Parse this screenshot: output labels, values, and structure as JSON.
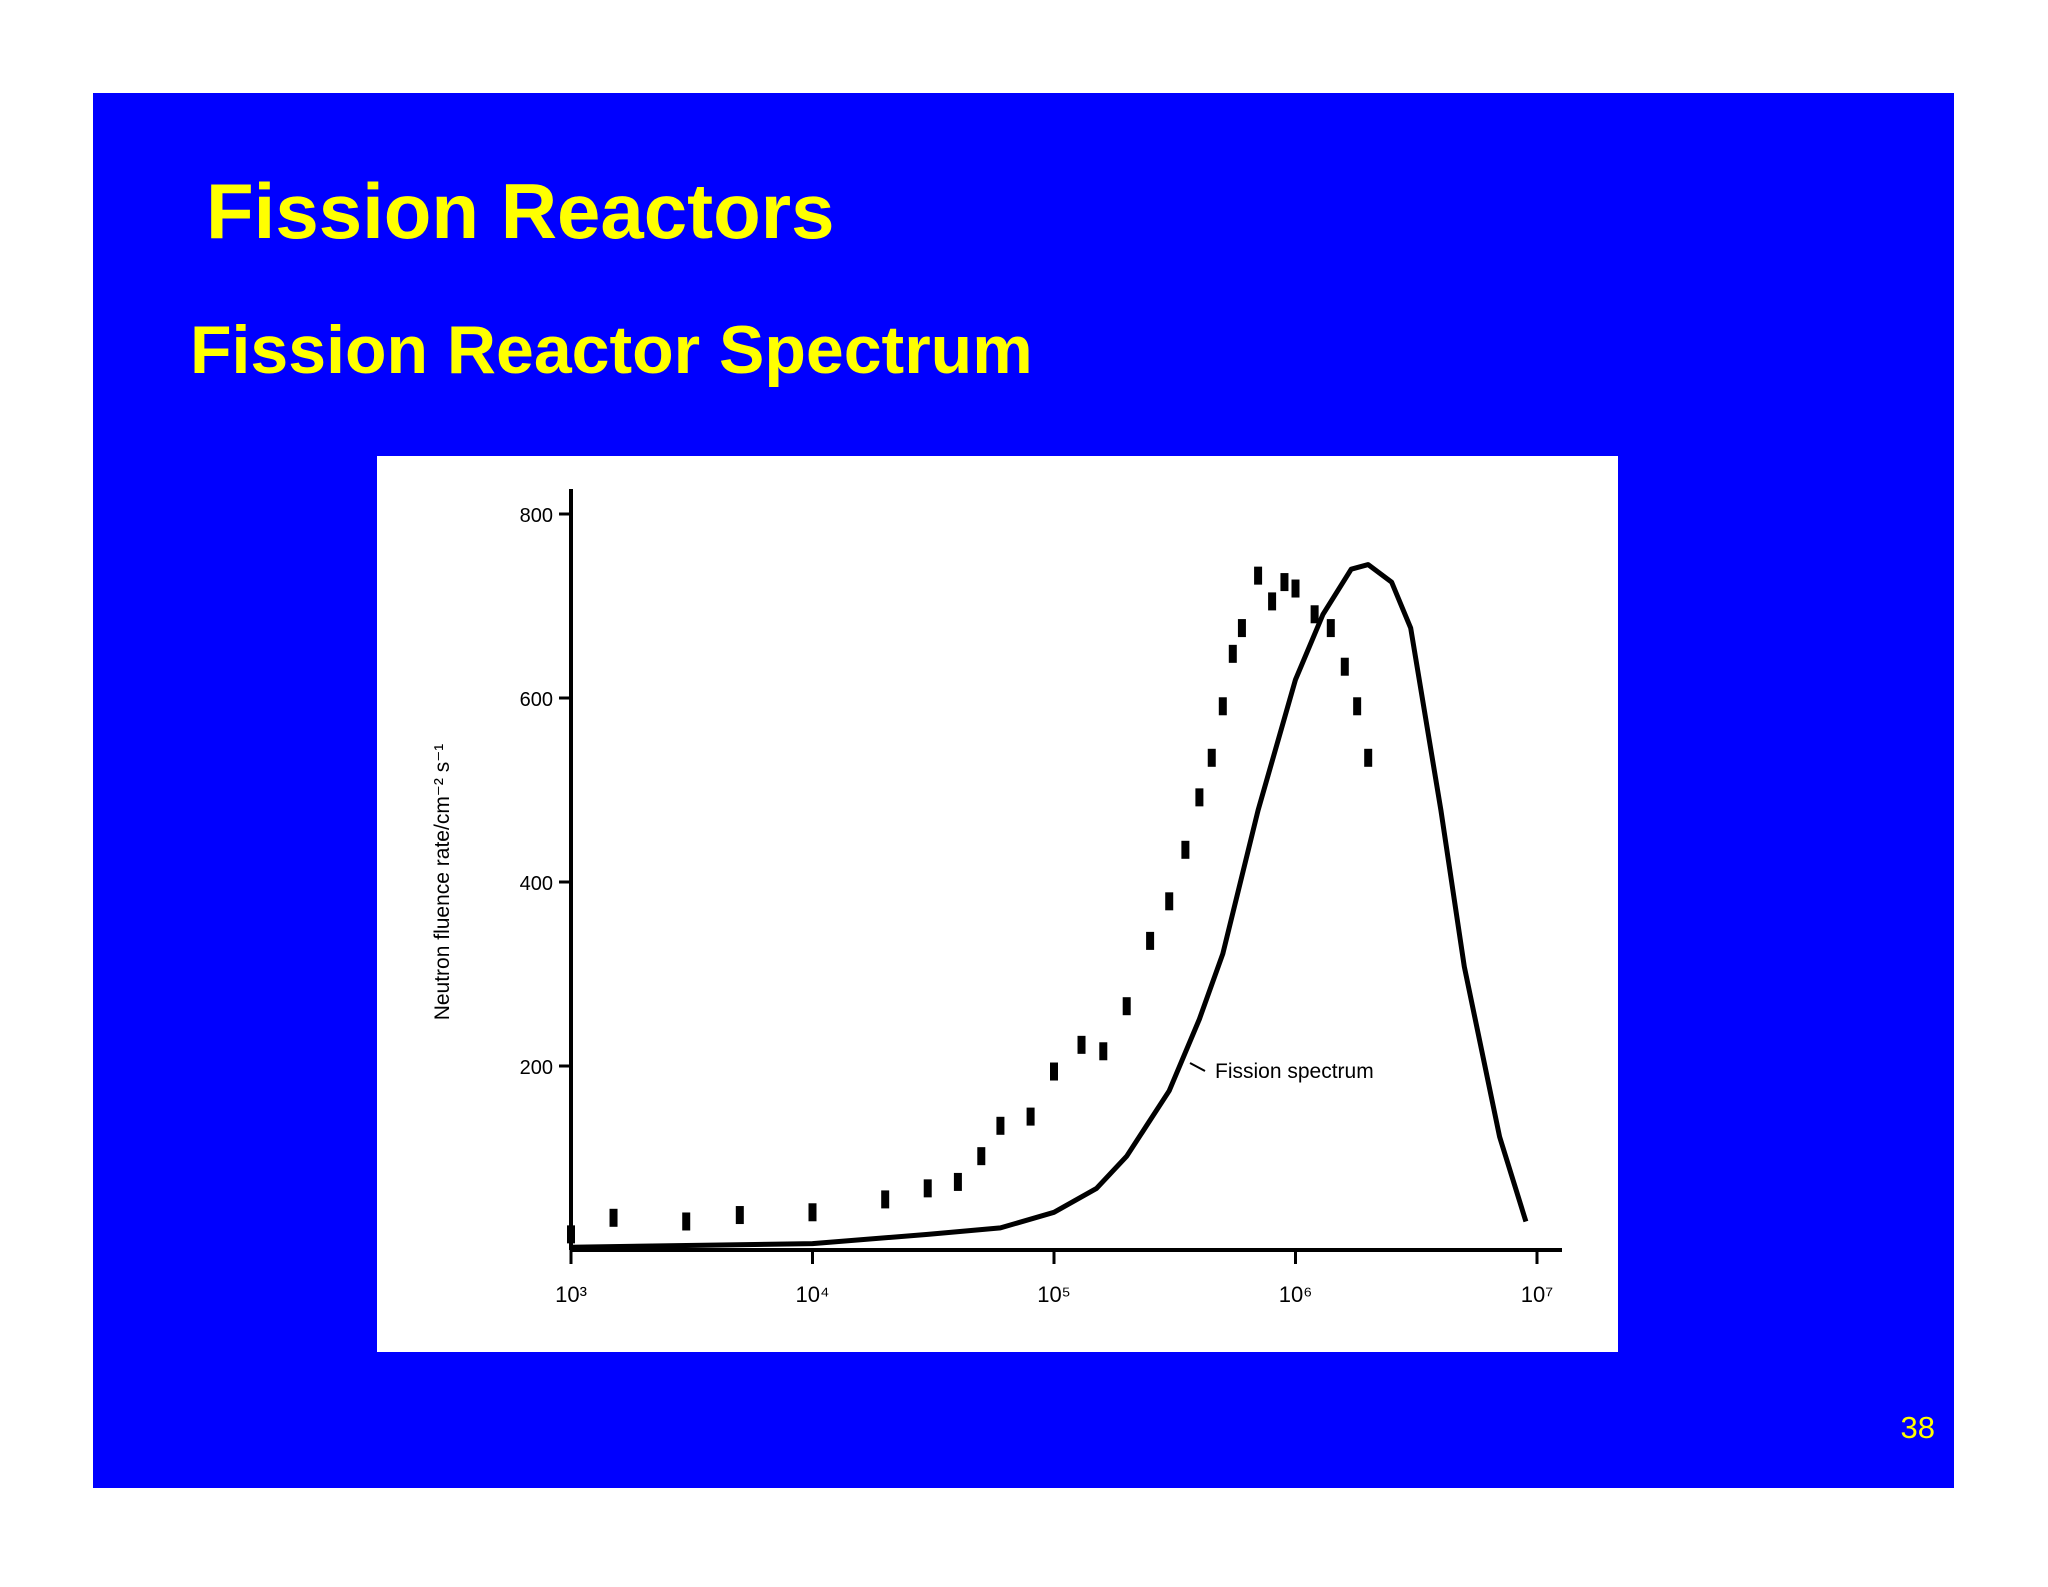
{
  "slide": {
    "title": "Fission Reactors",
    "subtitle": "Fission Reactor Spectrum",
    "page_number": "38"
  },
  "chart_data": {
    "type": "line",
    "y_label": "Neutron fluence rate/cm⁻² s⁻¹",
    "annotation": "Fission spectrum",
    "x_log": true,
    "xlim": [
      1000,
      10000000
    ],
    "xticks": [
      {
        "value": 1000,
        "label": "10³"
      },
      {
        "value": 10000,
        "label": "10⁴"
      },
      {
        "value": 100000,
        "label": "10⁵"
      },
      {
        "value": 1000000,
        "label": "10⁶"
      },
      {
        "value": 10000000,
        "label": "10⁷"
      }
    ],
    "ylim": [
      0,
      800
    ],
    "yticks": [
      200,
      400,
      600,
      800
    ],
    "series": [
      {
        "color": "#000000",
        "style": "points",
        "x": [
          1000,
          1500,
          3000,
          5000,
          10000,
          20000,
          30000,
          40000,
          50000,
          60000,
          80000,
          100000,
          130000,
          160000,
          200000,
          250000,
          300000,
          350000,
          400000,
          450000,
          500000,
          550000,
          600000,
          700000,
          800000,
          900000,
          1000000,
          1200000,
          1400000,
          1600000,
          1800000,
          2000000
        ],
        "values": [
          17,
          35,
          31,
          38,
          41,
          55,
          67,
          74,
          102,
          135,
          145,
          194,
          223,
          216,
          265,
          336,
          379,
          435,
          492,
          535,
          591,
          648,
          676,
          733,
          705,
          726,
          719,
          691,
          676,
          634,
          591,
          535
        ]
      },
      {
        "color": "#000000",
        "style": "line",
        "x": [
          1000,
          10000,
          30000,
          60000,
          100000,
          150000,
          200000,
          300000,
          400000,
          500000,
          700000,
          1000000,
          1300000,
          1700000,
          2000000,
          2500000,
          3000000,
          4000000,
          5000000,
          7000000,
          9000000
        ],
        "values": [
          3,
          7,
          17,
          24,
          41,
          67,
          102,
          173,
          251,
          322,
          478,
          620,
          691,
          740,
          745,
          726,
          676,
          478,
          308,
          123,
          31
        ]
      }
    ]
  }
}
